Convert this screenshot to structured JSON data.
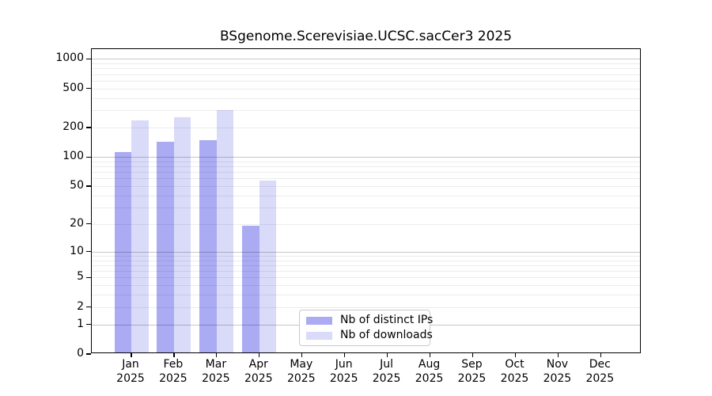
{
  "chart_data": {
    "type": "bar",
    "title": "BSgenome.Scerevisiae.UCSC.sacCer3 2025",
    "yscale": "log1p",
    "ylim": [
      0,
      1250
    ],
    "grid": true,
    "legend_position": "bottom-center",
    "months": [
      "Jan",
      "Feb",
      "Mar",
      "Apr",
      "May",
      "Jun",
      "Jul",
      "Aug",
      "Sep",
      "Oct",
      "Nov",
      "Dec"
    ],
    "year": "2025",
    "yticks": [
      "1000",
      "500",
      "200",
      "100",
      "50",
      "20",
      "10",
      "5",
      "2",
      "1",
      "0"
    ],
    "series": [
      {
        "name": "Nb of distinct IPs",
        "color": "#aaabf2",
        "values": [
          111,
          141,
          146,
          19,
          0,
          0,
          0,
          0,
          0,
          0,
          0,
          0
        ]
      },
      {
        "name": "Nb of downloads",
        "color": "#d9dbf9",
        "values": [
          232,
          250,
          298,
          56,
          0,
          0,
          0,
          0,
          0,
          0,
          0,
          0
        ]
      }
    ]
  },
  "colors": {
    "axis": "#000000",
    "grid_major": "#cccccc",
    "grid_minor": "#ebebeb",
    "legend_border": "#c9c9c9",
    "background": "#ffffff",
    "text": "#000000"
  }
}
